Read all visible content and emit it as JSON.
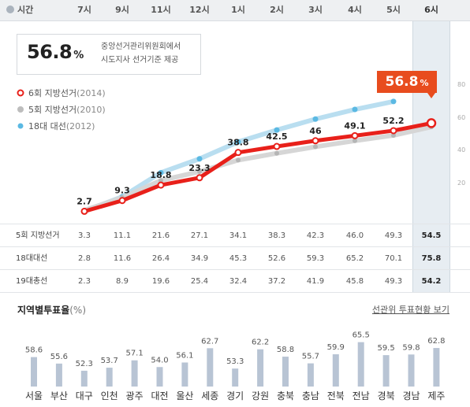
{
  "header": {
    "time_label": "시간",
    "hours": [
      "7시",
      "9시",
      "11시",
      "12시",
      "1시",
      "2시",
      "3시",
      "4시",
      "5시",
      "6시"
    ]
  },
  "summary": {
    "value": "56.8",
    "unit": "%",
    "note_line1": "중앙선거관리위원회에서",
    "note_line2": "시도지사 선거기준 제공"
  },
  "legend": [
    {
      "label": "6회 지방선거",
      "year": "(2014)",
      "color": "#e8201a",
      "marker": "ring"
    },
    {
      "label": "5회 지방선거",
      "year": "(2010)",
      "color": "#bdbdbd",
      "marker": "dot"
    },
    {
      "label": "18대 대선",
      "year": "(2012)",
      "color": "#5bb9e3",
      "marker": "dot"
    }
  ],
  "callout": {
    "value": "56.8",
    "unit": "%"
  },
  "chart_data": [
    {
      "type": "line",
      "x": [
        "7시",
        "9시",
        "11시",
        "12시",
        "1시",
        "2시",
        "3시",
        "4시",
        "5시",
        "6시"
      ],
      "ylim": [
        0,
        95
      ],
      "yticks": [
        20,
        40,
        60,
        80
      ],
      "series": [
        {
          "name": "6회 지방선거(2014)",
          "color": "#e8201a",
          "values": [
            2.7,
            9.3,
            18.8,
            23.3,
            38.8,
            42.5,
            46,
            49.1,
            52.2,
            56.8
          ],
          "labels": [
            "2.7",
            "9.3",
            "18.8",
            "23.3",
            "38.8",
            "42.5",
            "46",
            "49.1",
            "52.2",
            ""
          ]
        },
        {
          "name": "5회 지방선거(2010)",
          "color": "#bdbdbd",
          "values": [
            3.3,
            11.1,
            21.6,
            27.1,
            34.1,
            38.3,
            42.3,
            46.0,
            49.3,
            54.5
          ]
        },
        {
          "name": "18대 대선(2012)",
          "color": "#5bb9e3",
          "values": [
            2.8,
            11.6,
            26.4,
            34.9,
            45.3,
            52.6,
            59.3,
            65.2,
            70.1,
            75.8
          ]
        }
      ]
    },
    {
      "type": "bar",
      "title": "지역별투표율",
      "unit": "(%)",
      "categories": [
        "서울",
        "부산",
        "대구",
        "인천",
        "광주",
        "대전",
        "울산",
        "세종",
        "경기",
        "강원",
        "충북",
        "충남",
        "전북",
        "전남",
        "경북",
        "경남",
        "제주"
      ],
      "values": [
        58.6,
        55.6,
        52.3,
        53.7,
        57.1,
        54.0,
        56.1,
        62.7,
        53.3,
        62.2,
        58.8,
        55.7,
        59.9,
        65.5,
        59.5,
        59.8,
        62.8
      ],
      "labels": [
        "58.6",
        "55.6",
        "52.3",
        "53.7",
        "57.1",
        "54.0",
        "56.1",
        "62.7",
        "53.3",
        "62.2",
        "58.8",
        "55.7",
        "59.9",
        "65.5",
        "59.5",
        "59.8",
        "62.8"
      ],
      "color": "#b8c4d4"
    }
  ],
  "table": {
    "rows": [
      {
        "label": "5회 지방선거",
        "values": [
          "3.3",
          "11.1",
          "21.6",
          "27.1",
          "34.1",
          "38.3",
          "42.3",
          "46.0",
          "49.3",
          "54.5"
        ]
      },
      {
        "label": "18대대선",
        "values": [
          "2.8",
          "11.6",
          "26.4",
          "34.9",
          "45.3",
          "52.6",
          "59.3",
          "65.2",
          "70.1",
          "75.8"
        ]
      },
      {
        "label": "19대총선",
        "values": [
          "2.3",
          "8.9",
          "19.6",
          "25.4",
          "32.4",
          "37.2",
          "41.9",
          "45.8",
          "49.3",
          "54.2"
        ]
      }
    ]
  },
  "regions": {
    "title": "지역별투표율",
    "unit": "(%)",
    "link": "선관위 투표현황 보기"
  }
}
